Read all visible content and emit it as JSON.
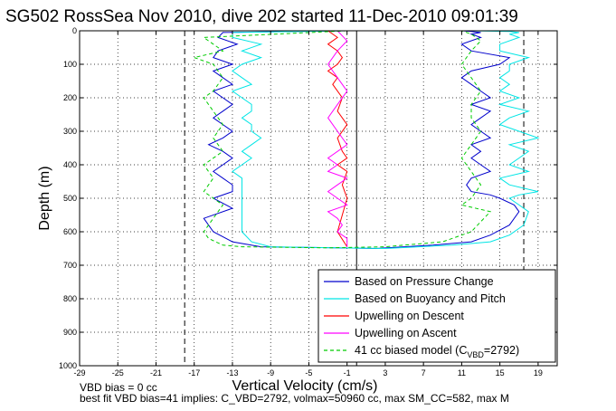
{
  "chart_data": {
    "type": "line",
    "title": "SG502 RossSea Nov 2010, dive 202 started 11-Dec-2010 09:01:39",
    "xlabel": "Vertical Velocity (cm/s)",
    "ylabel": "Depth (m)",
    "xlim": [
      -29,
      21
    ],
    "ylim": [
      0,
      1000
    ],
    "y_reversed": true,
    "grid": "dotted",
    "x_ticks": [
      -29,
      -25,
      -21,
      -17,
      -13,
      -9,
      -5,
      -1,
      3,
      7,
      11,
      15,
      19
    ],
    "y_ticks": [
      0,
      100,
      200,
      300,
      400,
      500,
      600,
      700,
      800,
      900,
      1000
    ],
    "reference_lines": [
      {
        "x": -18,
        "style": "dashed"
      },
      {
        "x": 17.5,
        "style": "dashed"
      },
      {
        "x": 0,
        "style": "solid"
      }
    ],
    "legend_position": "bottom-right",
    "series": [
      {
        "name": "Based on Pressure Change",
        "color": "#0000cc",
        "x": [
          -1,
          -14,
          -14.5,
          -12.5,
          -14.5,
          -15,
          -13,
          -15,
          -14,
          -13,
          -15,
          -14,
          -13,
          -14,
          -15,
          -14,
          -13,
          -14,
          -15.5,
          -14,
          -13,
          -14,
          -15,
          -14,
          -13,
          -13,
          -15,
          -13,
          -16,
          -15,
          -13,
          -10,
          -2,
          2,
          8,
          12,
          14,
          16,
          17,
          16.5,
          15,
          14,
          12,
          11.5,
          12,
          14,
          13,
          12,
          13,
          12,
          14,
          13,
          12,
          13,
          14,
          12,
          14,
          13,
          12,
          11,
          12,
          15,
          16,
          12,
          11,
          13,
          12,
          13,
          12,
          11
        ],
        "y": [
          0,
          5,
          20,
          40,
          60,
          80,
          100,
          120,
          140,
          160,
          180,
          200,
          220,
          240,
          260,
          280,
          300,
          320,
          340,
          360,
          380,
          400,
          420,
          440,
          460,
          480,
          500,
          530,
          560,
          600,
          630,
          645,
          648,
          650,
          640,
          630,
          610,
          580,
          540,
          520,
          500,
          490,
          480,
          460,
          440,
          420,
          400,
          380,
          360,
          340,
          320,
          300,
          280,
          260,
          240,
          220,
          200,
          180,
          160,
          140,
          120,
          100,
          80,
          60,
          40,
          20,
          10,
          5,
          2,
          0
        ]
      },
      {
        "name": "Based on Buoyancy and Pitch",
        "color": "#00e5e5",
        "x": [
          -1,
          -13,
          -13,
          -10,
          -12,
          -10,
          -12,
          -13,
          -12,
          -11,
          -13,
          -12,
          -11,
          -11,
          -12,
          -11,
          -11,
          -10,
          -11,
          -12,
          -11,
          -12,
          -13,
          -12,
          -12,
          -12,
          -12,
          -12,
          -12,
          -12,
          -11,
          -9,
          -2,
          3,
          10,
          14,
          16,
          17.5,
          18,
          17,
          16,
          17,
          19,
          16,
          15,
          18,
          16,
          17,
          18,
          16,
          19,
          17,
          15,
          16,
          18,
          15,
          17,
          15,
          16,
          15,
          16,
          16,
          18,
          15,
          15,
          17,
          16,
          17,
          16,
          12
        ],
        "y": [
          0,
          5,
          20,
          40,
          60,
          80,
          100,
          120,
          140,
          160,
          180,
          200,
          220,
          240,
          260,
          280,
          300,
          320,
          340,
          360,
          380,
          400,
          420,
          440,
          460,
          480,
          500,
          530,
          560,
          600,
          630,
          645,
          648,
          650,
          640,
          630,
          610,
          580,
          540,
          520,
          500,
          490,
          480,
          460,
          440,
          420,
          400,
          380,
          360,
          340,
          320,
          300,
          280,
          260,
          240,
          220,
          200,
          180,
          160,
          140,
          120,
          100,
          80,
          60,
          40,
          20,
          10,
          5,
          2,
          0
        ]
      },
      {
        "name": "Upwelling on Descent",
        "color": "#ff0000",
        "x": [
          -3,
          -2,
          -3,
          -2,
          -1.5,
          -2,
          -3,
          -2,
          -2.5,
          -2,
          -1.5,
          -2,
          -1,
          -2,
          -1.5,
          -1,
          -2,
          -1,
          -1.5,
          -1,
          -1.5,
          -2,
          -1
        ],
        "y": [
          0,
          20,
          40,
          60,
          80,
          100,
          120,
          140,
          160,
          180,
          200,
          240,
          280,
          320,
          360,
          380,
          400,
          420,
          460,
          500,
          550,
          600,
          645
        ]
      },
      {
        "name": "Upwelling on Ascent",
        "color": "#ff00ff",
        "x": [
          -1,
          -1,
          -2,
          -1.5,
          -2,
          -3,
          -1,
          -2,
          -3,
          -2,
          -1,
          -3,
          -2,
          -3,
          -1,
          -2,
          -3,
          -2,
          -1,
          -2,
          -3,
          -2,
          -1,
          -2
        ],
        "y": [
          645,
          620,
          600,
          580,
          560,
          540,
          520,
          500,
          480,
          460,
          440,
          420,
          400,
          380,
          340,
          300,
          260,
          220,
          180,
          140,
          100,
          60,
          30,
          0
        ]
      },
      {
        "name": "41 cc biased model (C",
        "name_sub": "VBD",
        "name_tail": "=2792)",
        "color": "#00cc00",
        "dashed": true,
        "x": [
          -1,
          -16,
          -15,
          -14,
          -17,
          -15,
          -14,
          -15,
          -16,
          -15,
          -14,
          -15,
          -14,
          -16,
          -15,
          -16,
          -14,
          -15,
          -16,
          -15.5,
          -14,
          -12,
          -3,
          3,
          9,
          12,
          13,
          14,
          11,
          12,
          13,
          12,
          11,
          12,
          13,
          12,
          12,
          13,
          12,
          11,
          12,
          13,
          12,
          11
        ],
        "y": [
          0,
          20,
          40,
          60,
          80,
          100,
          140,
          180,
          200,
          240,
          280,
          320,
          360,
          400,
          440,
          480,
          520,
          560,
          600,
          620,
          640,
          645,
          648,
          645,
          630,
          600,
          570,
          540,
          520,
          500,
          460,
          420,
          380,
          340,
          300,
          260,
          220,
          180,
          140,
          100,
          60,
          30,
          10,
          0
        ]
      }
    ],
    "footer_line1": "VBD bias = 0 cc",
    "footer_line2": "best fit VBD bias=41 implies: C_VBD=2792, volmax=50960 cc, max SM_CC=582, max M"
  }
}
